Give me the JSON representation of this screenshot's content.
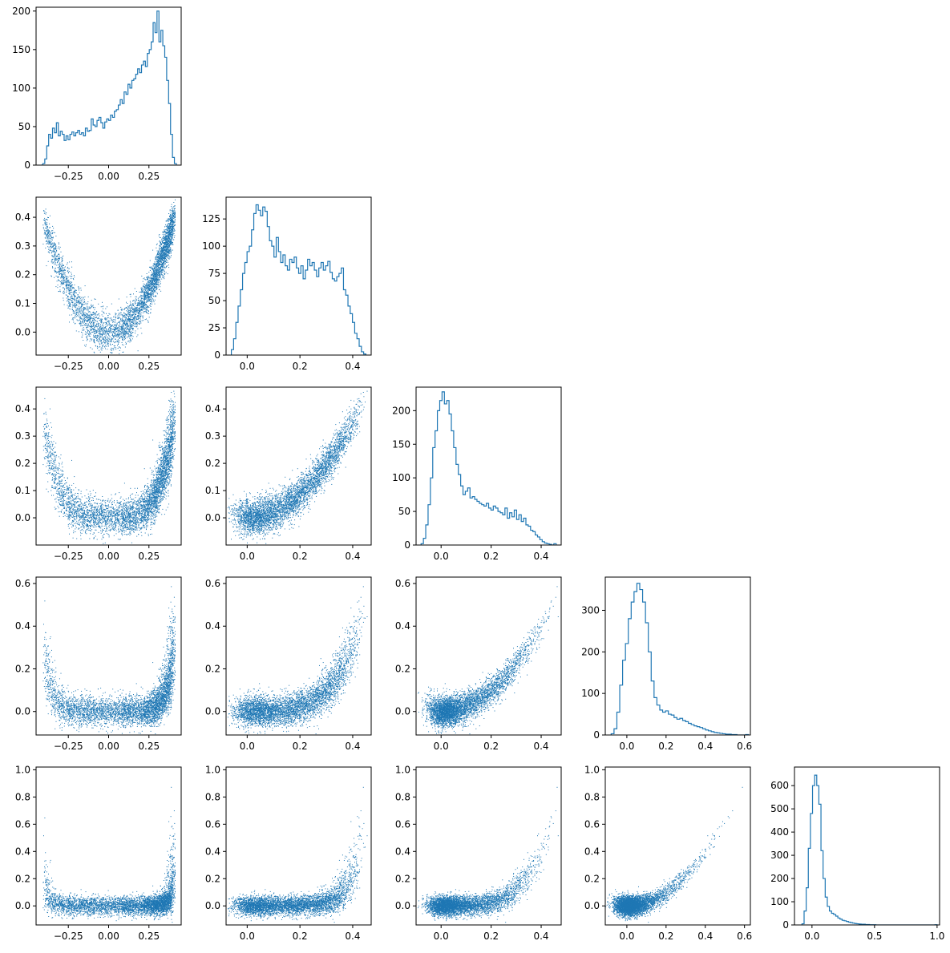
{
  "chart_data": {
    "type": "corner",
    "title": "",
    "color": "#1f77b4",
    "dimensions": 5,
    "grid": false,
    "legend": "none",
    "axis_ranges": [
      [
        -0.45,
        0.45
      ],
      [
        -0.08,
        0.47
      ],
      [
        -0.1,
        0.48
      ],
      [
        -0.11,
        0.63
      ],
      [
        -0.14,
        1.02
      ]
    ],
    "x_ticks": [
      {
        "values": [
          -0.25,
          0.0,
          0.25
        ],
        "labels": [
          "−0.25",
          "0.00",
          "0.25"
        ]
      },
      {
        "values": [
          0.0,
          0.2,
          0.4
        ],
        "labels": [
          "0.0",
          "0.2",
          "0.4"
        ]
      },
      {
        "values": [
          0.0,
          0.2,
          0.4
        ],
        "labels": [
          "0.0",
          "0.2",
          "0.4"
        ]
      },
      {
        "values": [
          0.0,
          0.2,
          0.4,
          0.6
        ],
        "labels": [
          "0.0",
          "0.2",
          "0.4",
          "0.6"
        ]
      },
      {
        "values": [
          0.0,
          0.5,
          1.0
        ],
        "labels": [
          "0.0",
          "0.5",
          "1.0"
        ]
      }
    ],
    "y_ticks": [
      {
        "values": [
          0.0,
          0.1,
          0.2,
          0.3,
          0.4
        ],
        "labels": [
          "0.0",
          "0.1",
          "0.2",
          "0.3",
          "0.4"
        ]
      },
      {
        "values": [
          0.0,
          0.1,
          0.2,
          0.3,
          0.4
        ],
        "labels": [
          "0.0",
          "0.1",
          "0.2",
          "0.3",
          "0.4"
        ]
      },
      {
        "values": [
          0.0,
          0.2,
          0.4,
          0.6
        ],
        "labels": [
          "0.0",
          "0.2",
          "0.4",
          "0.6"
        ]
      },
      {
        "values": [
          0.0,
          0.2,
          0.4,
          0.6,
          0.8,
          1.0
        ],
        "labels": [
          "0.0",
          "0.2",
          "0.4",
          "0.6",
          "0.8",
          "1.0"
        ]
      }
    ],
    "histograms": [
      {
        "ylim": [
          0,
          205
        ],
        "yticks": [
          0,
          50,
          100,
          150,
          200
        ],
        "ylabels": [
          "0",
          "50",
          "100",
          "150",
          "200"
        ],
        "bin_edges_range": [
          -0.42,
          0.42
        ],
        "counts": [
          0,
          2,
          8,
          25,
          40,
          35,
          48,
          42,
          55,
          38,
          44,
          40,
          32,
          38,
          33,
          40,
          43,
          38,
          42,
          45,
          40,
          42,
          38,
          48,
          44,
          45,
          60,
          52,
          50,
          58,
          62,
          55,
          48,
          56,
          60,
          58,
          65,
          62,
          70,
          72,
          78,
          85,
          80,
          95,
          92,
          105,
          100,
          110,
          112,
          118,
          125,
          120,
          130,
          135,
          128,
          145,
          150,
          160,
          185,
          172,
          200,
          160,
          175,
          155,
          140,
          110,
          80,
          40,
          10,
          2
        ]
      },
      {
        "ylim": [
          0,
          145
        ],
        "yticks": [
          0,
          25,
          50,
          75,
          100,
          125
        ],
        "ylabels": [
          "0",
          "25",
          "50",
          "75",
          "100",
          "125"
        ],
        "bin_edges_range": [
          -0.06,
          0.45
        ],
        "counts": [
          5,
          15,
          30,
          45,
          60,
          75,
          85,
          95,
          100,
          115,
          130,
          138,
          133,
          128,
          136,
          132,
          118,
          105,
          100,
          90,
          108,
          95,
          85,
          92,
          82,
          78,
          88,
          85,
          90,
          80,
          75,
          82,
          70,
          78,
          88,
          82,
          85,
          78,
          72,
          80,
          85,
          78,
          82,
          86,
          76,
          70,
          68,
          72,
          75,
          80,
          60,
          55,
          45,
          38,
          30,
          20,
          15,
          8,
          3,
          1
        ]
      },
      {
        "ylim": [
          0,
          235
        ],
        "yticks": [
          0,
          50,
          100,
          150,
          200
        ],
        "ylabels": [
          "0",
          "50",
          "100",
          "150",
          "200"
        ],
        "bin_edges_range": [
          -0.08,
          0.46
        ],
        "counts": [
          2,
          10,
          30,
          60,
          100,
          145,
          170,
          200,
          215,
          228,
          210,
          215,
          195,
          170,
          145,
          120,
          105,
          88,
          75,
          80,
          85,
          70,
          72,
          68,
          65,
          62,
          60,
          58,
          62,
          55,
          52,
          58,
          55,
          50,
          48,
          45,
          55,
          40,
          48,
          42,
          52,
          38,
          45,
          35,
          40,
          30,
          28,
          22,
          20,
          15,
          12,
          8,
          5,
          3,
          2,
          1,
          0,
          2
        ]
      },
      {
        "ylim": [
          0,
          380
        ],
        "yticks": [
          0,
          100,
          200,
          300
        ],
        "ylabels": [
          "0",
          "100",
          "200",
          "300"
        ],
        "bin_edges_range": [
          -0.08,
          0.62
        ],
        "counts": [
          3,
          15,
          55,
          120,
          180,
          220,
          280,
          320,
          345,
          365,
          350,
          320,
          270,
          200,
          130,
          90,
          72,
          60,
          55,
          58,
          50,
          48,
          42,
          38,
          40,
          35,
          32,
          28,
          25,
          22,
          20,
          18,
          15,
          12,
          10,
          8,
          6,
          5,
          4,
          3,
          2,
          2,
          1,
          1,
          0,
          0,
          0,
          1
        ]
      },
      {
        "ylim": [
          0,
          680
        ],
        "yticks": [
          0,
          100,
          200,
          300,
          400,
          500,
          600
        ],
        "ylabels": [
          "0",
          "100",
          "200",
          "300",
          "400",
          "500",
          "600"
        ],
        "bin_edges_range": [
          -0.08,
          1.0
        ],
        "counts": [
          5,
          60,
          160,
          330,
          480,
          600,
          645,
          600,
          520,
          320,
          200,
          120,
          80,
          60,
          50,
          45,
          38,
          30,
          25,
          20,
          18,
          15,
          12,
          10,
          8,
          6,
          5,
          4,
          3,
          3,
          2,
          2,
          1,
          1,
          1,
          0,
          0,
          0,
          0,
          0,
          0,
          0,
          0,
          0,
          0,
          0,
          0,
          0,
          0,
          0,
          0,
          0,
          0,
          0,
          0,
          0,
          0,
          0,
          0,
          0,
          0,
          0,
          0,
          1
        ]
      }
    ]
  }
}
